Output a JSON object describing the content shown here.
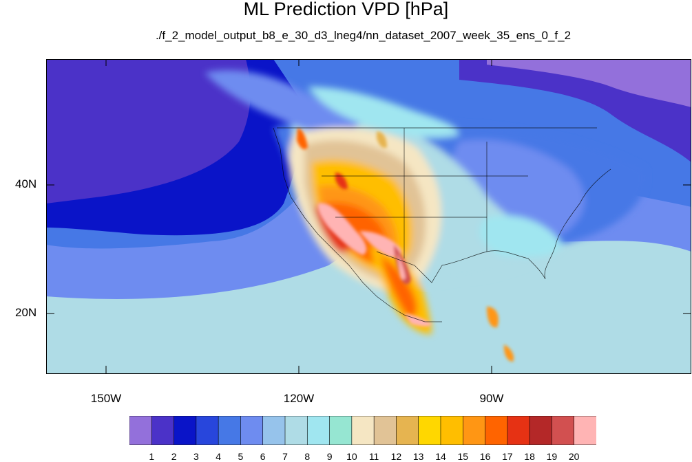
{
  "title": "ML Prediction VPD [hPa]",
  "subtitle": "./f_2_model_output_b8_e_30_d3_lneg4/nn_dataset_2007_week_35_ens_0_f_2",
  "axes": {
    "y_ticks": [
      {
        "label": "40N",
        "lat": 40
      },
      {
        "label": "20N",
        "lat": 20
      }
    ],
    "x_ticks": [
      {
        "label": "150W",
        "lon": -150
      },
      {
        "label": "120W",
        "lon": -120
      },
      {
        "label": "90W",
        "lon": -90
      }
    ],
    "lon_range": [
      -159.3,
      -59.5
    ],
    "lat_range": [
      11.0,
      60.0
    ]
  },
  "colorbar": {
    "labels": [
      "1",
      "2",
      "3",
      "4",
      "5",
      "6",
      "7",
      "8",
      "9",
      "10",
      "11",
      "12",
      "13",
      "14",
      "15",
      "16",
      "17",
      "18",
      "19",
      "20"
    ],
    "colors": [
      "#9370db",
      "#4b32c8",
      "#0a14c8",
      "#2846dc",
      "#4678e6",
      "#6e8cf0",
      "#96c3eb",
      "#afdce6",
      "#a0e6f0",
      "#96e6d2",
      "#f5e6c3",
      "#e1c396",
      "#e6b450",
      "#ffd700",
      "#ffbe00",
      "#ff9614",
      "#ff6400",
      "#e63214",
      "#b42828",
      "#d25050",
      "#ffb4b4"
    ]
  }
}
